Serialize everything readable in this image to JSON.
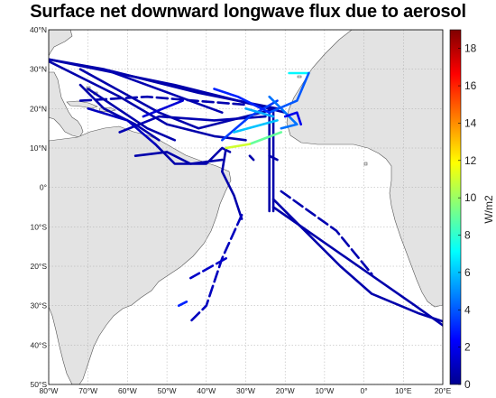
{
  "title": "Surface net downward longwave flux due to aerosol",
  "map": {
    "lon_range": [
      -80,
      20
    ],
    "lat_range": [
      -50,
      40
    ],
    "grid_step": 10,
    "x_ticks": [
      {
        "lon": -80,
        "label": "80°W"
      },
      {
        "lon": -70,
        "label": "70°W"
      },
      {
        "lon": -60,
        "label": "60°W"
      },
      {
        "lon": -50,
        "label": "50°W"
      },
      {
        "lon": -40,
        "label": "40°W"
      },
      {
        "lon": -30,
        "label": "30°W"
      },
      {
        "lon": -20,
        "label": "20°W"
      },
      {
        "lon": -10,
        "label": "10°W"
      },
      {
        "lon": 0,
        "label": "0°"
      },
      {
        "lon": 10,
        "label": "10°E"
      },
      {
        "lon": 20,
        "label": "20°E"
      }
    ],
    "y_ticks": [
      {
        "lat": 40,
        "label": "40°N"
      },
      {
        "lat": 30,
        "label": "30°N"
      },
      {
        "lat": 20,
        "label": "20°N"
      },
      {
        "lat": 10,
        "label": "10°N"
      },
      {
        "lat": 0,
        "label": "0°"
      },
      {
        "lat": -10,
        "label": "10°S"
      },
      {
        "lat": -20,
        "label": "20°S"
      },
      {
        "lat": -30,
        "label": "30°S"
      },
      {
        "lat": -40,
        "label": "40°S"
      },
      {
        "lat": -50,
        "label": "50°S"
      }
    ],
    "land_color": "#e3e3e3",
    "ocean_color": "#ffffff",
    "coast_color": "#555555",
    "grid_color": "#aaaaaa"
  },
  "colorbar": {
    "label": "W/m2",
    "min": 0,
    "max": 19,
    "ticks": [
      {
        "value": 0,
        "label": "0"
      },
      {
        "value": 2,
        "label": "2"
      },
      {
        "value": 4,
        "label": "4"
      },
      {
        "value": 6,
        "label": "6"
      },
      {
        "value": 8,
        "label": "8"
      },
      {
        "value": 10,
        "label": "10"
      },
      {
        "value": 12,
        "label": "12"
      },
      {
        "value": 14,
        "label": "14"
      },
      {
        "value": 16,
        "label": "16"
      },
      {
        "value": 18,
        "label": "18"
      }
    ],
    "colormap": [
      "#00008f",
      "#0000ff",
      "#0080ff",
      "#00ffff",
      "#80ff80",
      "#ffff00",
      "#ff8000",
      "#ff0000",
      "#800000"
    ]
  },
  "tracks": [
    {
      "v": 0.6,
      "dashed": false,
      "pts": [
        [
          -80,
          32.5
        ],
        [
          -66,
          30
        ],
        [
          -42,
          24
        ],
        [
          -22,
          20
        ]
      ]
    },
    {
      "v": 0.6,
      "dashed": false,
      "pts": [
        [
          -80,
          32.5
        ],
        [
          -48,
          26
        ],
        [
          -20,
          19
        ]
      ]
    },
    {
      "v": 0.6,
      "dashed": false,
      "pts": [
        [
          -72,
          30
        ],
        [
          -52,
          19
        ],
        [
          -42,
          15
        ],
        [
          -22,
          20
        ]
      ]
    },
    {
      "v": 0.6,
      "dashed": false,
      "pts": [
        [
          -72,
          26
        ],
        [
          -66,
          20
        ],
        [
          -58,
          16
        ],
        [
          -52,
          12
        ]
      ]
    },
    {
      "v": 0.7,
      "dashed": true,
      "pts": [
        [
          -72,
          22
        ],
        [
          -55,
          23
        ],
        [
          -43,
          22
        ],
        [
          -30,
          21
        ]
      ]
    },
    {
      "v": 0.6,
      "dashed": false,
      "pts": [
        [
          -80,
          32
        ],
        [
          -62,
          23
        ],
        [
          -50,
          16
        ],
        [
          -38,
          13
        ],
        [
          -30,
          12
        ]
      ]
    },
    {
      "v": 0.6,
      "dashed": false,
      "pts": [
        [
          -70,
          25
        ],
        [
          -55,
          15
        ],
        [
          -48,
          12
        ]
      ]
    },
    {
      "v": 0.7,
      "dashed": false,
      "pts": [
        [
          -62,
          14
        ],
        [
          -52,
          18
        ],
        [
          -38,
          17
        ],
        [
          -25,
          18
        ]
      ]
    },
    {
      "v": 0.6,
      "dashed": false,
      "pts": [
        [
          -58,
          8
        ],
        [
          -50,
          9
        ],
        [
          -44,
          6
        ],
        [
          -36,
          7
        ]
      ]
    },
    {
      "v": 0.6,
      "dashed": false,
      "pts": [
        [
          -53,
          11
        ],
        [
          -48,
          6
        ],
        [
          -40,
          6
        ],
        [
          -36,
          10
        ],
        [
          -34,
          9
        ]
      ]
    },
    {
      "v": 1.0,
      "dashed": false,
      "pts": [
        [
          -53,
          11
        ],
        [
          -60,
          17
        ],
        [
          -70,
          20
        ]
      ]
    },
    {
      "v": 1.5,
      "dashed": false,
      "pts": [
        [
          -56,
          18
        ],
        [
          -46,
          22
        ]
      ]
    },
    {
      "v": 0.7,
      "dashed": false,
      "pts": [
        [
          -66,
          30
        ],
        [
          -36,
          19
        ]
      ]
    },
    {
      "v": 0.6,
      "dashed": false,
      "pts": [
        [
          -35,
          10
        ],
        [
          -36,
          4
        ],
        [
          -33,
          -2
        ],
        [
          -31,
          -8
        ]
      ]
    },
    {
      "v": 0.6,
      "dashed": false,
      "pts": [
        [
          -24,
          20
        ],
        [
          -24,
          -6
        ]
      ]
    },
    {
      "v": 0.6,
      "dashed": false,
      "pts": [
        [
          -23,
          20
        ],
        [
          -23,
          -6
        ]
      ]
    },
    {
      "v": 0.6,
      "dashed": true,
      "pts": [
        [
          -29,
          8
        ],
        [
          -28,
          7
        ]
      ]
    },
    {
      "v": 0.6,
      "dashed": true,
      "pts": [
        [
          -24,
          8
        ],
        [
          -22,
          7
        ]
      ]
    },
    {
      "v": 0.6,
      "dashed": false,
      "pts": [
        [
          -23,
          -5
        ],
        [
          13,
          -30
        ],
        [
          20,
          -35
        ]
      ]
    },
    {
      "v": 0.6,
      "dashed": false,
      "pts": [
        [
          -23,
          -3
        ],
        [
          -6,
          -20
        ],
        [
          2,
          -27
        ],
        [
          14,
          -32
        ],
        [
          20,
          -34
        ]
      ]
    },
    {
      "v": 0.7,
      "dashed": true,
      "pts": [
        [
          -21,
          -1
        ],
        [
          -7,
          -11
        ],
        [
          2,
          -22
        ]
      ]
    },
    {
      "v": 1.0,
      "dashed": true,
      "pts": [
        [
          -31,
          -7
        ],
        [
          -36,
          -18
        ],
        [
          -40,
          -30
        ],
        [
          -44,
          -34
        ]
      ]
    },
    {
      "v": 1.2,
      "dashed": true,
      "pts": [
        [
          -35,
          -18
        ],
        [
          -44,
          -23
        ]
      ]
    },
    {
      "v": 3.0,
      "dashed": true,
      "pts": [
        [
          -45,
          -29
        ],
        [
          -47,
          -30
        ]
      ]
    },
    {
      "v": 3.5,
      "dashed": false,
      "pts": [
        [
          -22,
          22
        ],
        [
          -29,
          18
        ],
        [
          -36,
          12
        ]
      ]
    },
    {
      "v": 4.5,
      "dashed": false,
      "pts": [
        [
          -24,
          23
        ],
        [
          -17,
          16
        ],
        [
          -21,
          15
        ]
      ]
    },
    {
      "v": 5.5,
      "dashed": false,
      "pts": [
        [
          -30,
          20
        ],
        [
          -23,
          18
        ]
      ]
    },
    {
      "v": 6.0,
      "dashed": false,
      "pts": [
        [
          -22,
          17
        ],
        [
          -33,
          14
        ]
      ]
    },
    {
      "v": 9.0,
      "dashed": false,
      "pts": [
        [
          -21,
          14
        ],
        [
          -29,
          11
        ]
      ]
    },
    {
      "v": 11.0,
      "dashed": false,
      "pts": [
        [
          -29,
          11
        ],
        [
          -35,
          10
        ]
      ]
    },
    {
      "v": 7.0,
      "dashed": false,
      "pts": [
        [
          -19,
          29
        ],
        [
          -14,
          29
        ]
      ]
    },
    {
      "v": 4.0,
      "dashed": false,
      "pts": [
        [
          -14,
          29
        ],
        [
          -17,
          22
        ],
        [
          -24,
          19
        ]
      ]
    },
    {
      "v": 3.0,
      "dashed": false,
      "pts": [
        [
          -38,
          25
        ],
        [
          -32,
          23
        ],
        [
          -24,
          19
        ]
      ]
    },
    {
      "v": 2.0,
      "dashed": false,
      "pts": [
        [
          -20,
          18
        ],
        [
          -17,
          19
        ],
        [
          -16,
          16
        ]
      ]
    }
  ]
}
